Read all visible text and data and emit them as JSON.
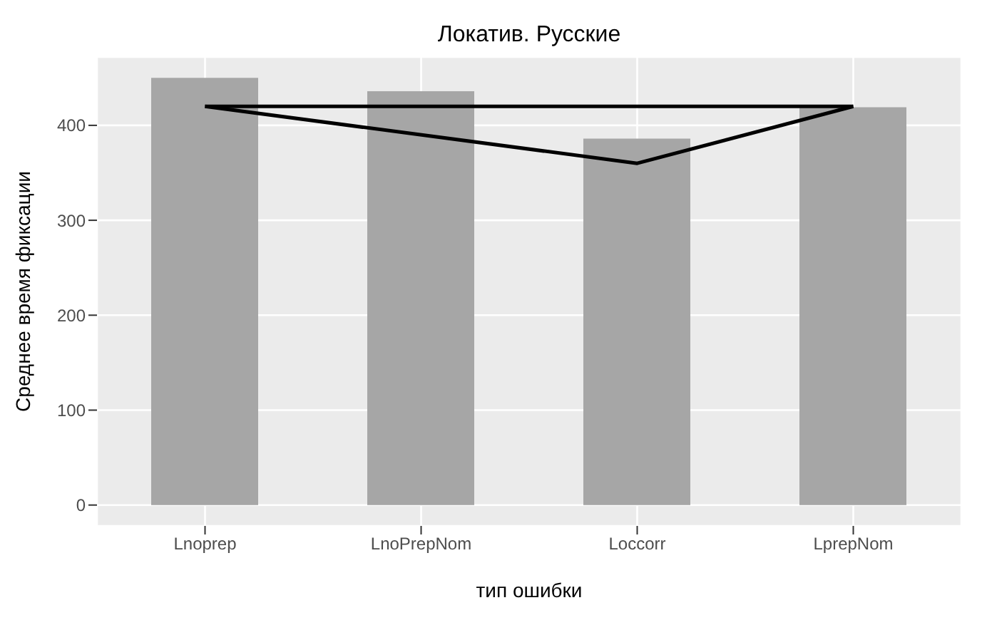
{
  "chart_data": {
    "type": "bar",
    "title": "Локатив. Русские",
    "xlabel": "тип ошибки",
    "ylabel": "Среднее время фиксации",
    "categories": [
      "Lnoprep",
      "LnoPrepNom",
      "Loccorr",
      "LprepNom"
    ],
    "series": [
      {
        "color": "#a6a6a6",
        "values": [
          450,
          436,
          386,
          419
        ]
      },
      {
        "type": "line",
        "color": "#000000",
        "x": [
          "Lnoprep",
          "Loccorr",
          "LprepNom"
        ],
        "values": [
          420,
          360,
          420
        ]
      },
      {
        "type": "line",
        "color": "#000000",
        "x": [
          "Lnoprep",
          "LprepNom"
        ],
        "values": [
          420,
          420
        ]
      }
    ],
    "ylim": [
      -22,
      472
    ],
    "yticks": [
      0,
      100,
      200,
      300,
      400
    ],
    "grid": true,
    "legend": false
  }
}
